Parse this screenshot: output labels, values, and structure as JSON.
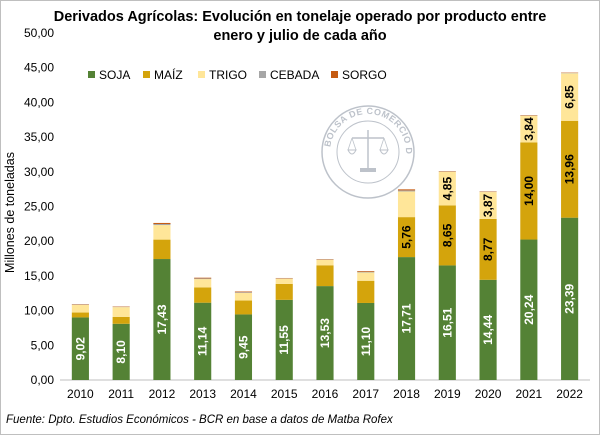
{
  "chart_data": {
    "type": "bar",
    "stacked": true,
    "title": "Derivados Agrícolas: Evolución en tonelaje operado por producto entre",
    "subtitle": "enero y julio de cada año",
    "xlabel": "",
    "ylabel": "Millones de toneladas",
    "ylim": [
      0,
      50
    ],
    "yticks": [
      "0,00",
      "5,00",
      "10,00",
      "15,00",
      "20,00",
      "25,00",
      "30,00",
      "35,00",
      "40,00",
      "45,00",
      "50,00"
    ],
    "grid": false,
    "legend_position": "top",
    "categories": [
      "2010",
      "2011",
      "2012",
      "2013",
      "2014",
      "2015",
      "2016",
      "2017",
      "2018",
      "2019",
      "2020",
      "2021",
      "2022"
    ],
    "series": [
      {
        "name": "SOJA",
        "color": "#548235",
        "values": [
          9.02,
          8.1,
          17.43,
          11.14,
          9.45,
          11.55,
          13.53,
          11.1,
          17.71,
          16.51,
          14.44,
          20.24,
          23.39
        ],
        "labels": [
          "9,02",
          "8,10",
          "17,43",
          "11,14",
          "9,45",
          "11,55",
          "13,53",
          "11,10",
          "17,71",
          "16,51",
          "14,44",
          "20,24",
          "23,39"
        ]
      },
      {
        "name": "MAÍZ",
        "color": "#D4A40C",
        "values": [
          0.7,
          1.0,
          2.8,
          2.2,
          2.0,
          2.3,
          3.0,
          3.2,
          5.76,
          8.65,
          8.77,
          14.0,
          13.96
        ],
        "labels": [
          "",
          "",
          "",
          "",
          "",
          "",
          "",
          "",
          "5,76",
          "8,65",
          "8,77",
          "14,00",
          "13,96"
        ]
      },
      {
        "name": "TRIGO",
        "color": "#FFE699",
        "values": [
          1.1,
          1.4,
          2.1,
          1.2,
          1.1,
          0.75,
          0.8,
          1.2,
          3.7,
          4.85,
          3.87,
          3.84,
          6.85
        ],
        "labels": [
          "",
          "",
          "",
          "",
          "",
          "",
          "",
          "",
          "",
          "4,85",
          "3,87",
          "3,84",
          "6,85"
        ]
      },
      {
        "name": "CEBADA",
        "color": "#A6A6A6",
        "values": [
          0.05,
          0.05,
          0.15,
          0.1,
          0.1,
          0.05,
          0.05,
          0.1,
          0.15,
          0.05,
          0.05,
          0.05,
          0.05
        ],
        "labels": [
          "",
          "",
          "",
          "",
          "",
          "",
          "",
          "",
          "",
          "",
          "",
          "",
          ""
        ]
      },
      {
        "name": "SORGO",
        "color": "#C55A11",
        "values": [
          0.05,
          0.05,
          0.15,
          0.1,
          0.1,
          0.05,
          0.05,
          0.1,
          0.15,
          0.05,
          0.05,
          0.05,
          0.05
        ],
        "labels": [
          "",
          "",
          "",
          "",
          "",
          "",
          "",
          "",
          "",
          "",
          "",
          "",
          ""
        ]
      }
    ],
    "watermark": "BOLSA DE COMERCIO DE ROSARIO"
  },
  "source": "Fuente: Dpto. Estudios Económicos - BCR en base a datos de Matba Rofex"
}
